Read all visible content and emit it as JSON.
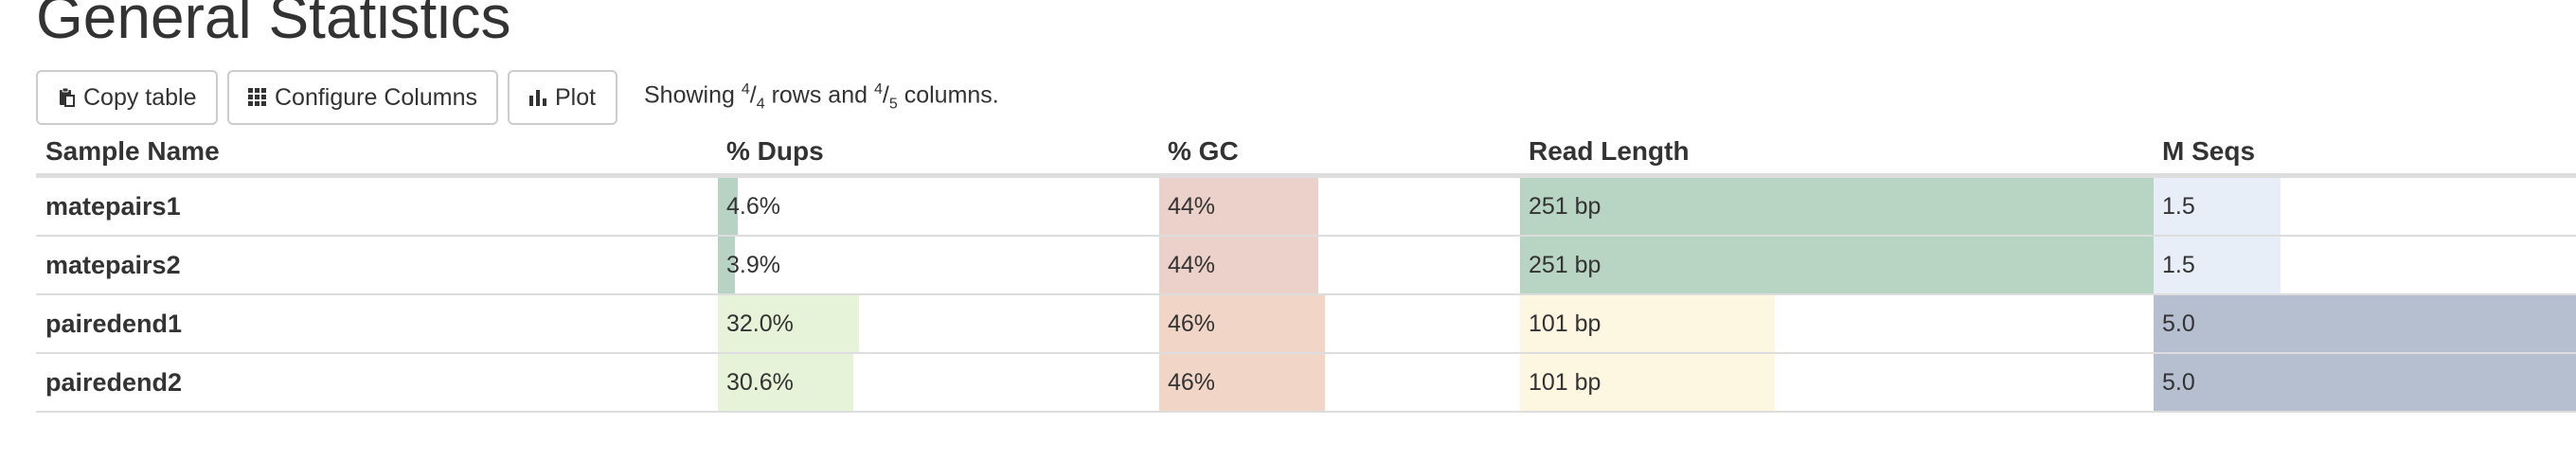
{
  "title": "General Statistics",
  "toolbar": {
    "copy_label": "Copy table",
    "configure_label": "Configure Columns",
    "plot_label": "Plot",
    "showing_prefix": "Showing",
    "rows_shown": "4",
    "rows_total": "4",
    "rows_word": "rows and",
    "cols_shown": "4",
    "cols_total": "5",
    "cols_word": "columns."
  },
  "columns": [
    "Sample Name",
    "% Dups",
    "% GC",
    "Read Length",
    "M Seqs"
  ],
  "rows": [
    {
      "name": "matepairs1",
      "dups": {
        "text": "4.6%",
        "level": 0.046,
        "color": "#b6d3c4"
      },
      "gc": {
        "text": "44%",
        "level": 0.44,
        "color": "#ecd0ca"
      },
      "readlen": {
        "text": "251 bp",
        "level": 1.0,
        "color": "#b8d4c3"
      },
      "mseqs": {
        "text": "1.5",
        "level": 0.3,
        "color": "#e8eef7"
      }
    },
    {
      "name": "matepairs2",
      "dups": {
        "text": "3.9%",
        "level": 0.039,
        "color": "#b6d3c4"
      },
      "gc": {
        "text": "44%",
        "level": 0.44,
        "color": "#ecd0ca"
      },
      "readlen": {
        "text": "251 bp",
        "level": 1.0,
        "color": "#b8d4c3"
      },
      "mseqs": {
        "text": "1.5",
        "level": 0.3,
        "color": "#e8eef7"
      }
    },
    {
      "name": "pairedend1",
      "dups": {
        "text": "32.0%",
        "level": 0.32,
        "color": "#e6f3d8"
      },
      "gc": {
        "text": "46%",
        "level": 0.46,
        "color": "#f1d6c8"
      },
      "readlen": {
        "text": "101 bp",
        "level": 0.402,
        "color": "#fdf6e1"
      },
      "mseqs": {
        "text": "5.0",
        "level": 1.0,
        "color": "#b5bfd0"
      }
    },
    {
      "name": "pairedend2",
      "dups": {
        "text": "30.6%",
        "level": 0.306,
        "color": "#e6f3d8"
      },
      "gc": {
        "text": "46%",
        "level": 0.46,
        "color": "#f1d6c8"
      },
      "readlen": {
        "text": "101 bp",
        "level": 0.402,
        "color": "#fdf6e1"
      },
      "mseqs": {
        "text": "5.0",
        "level": 1.0,
        "color": "#b5bfd0"
      }
    }
  ]
}
